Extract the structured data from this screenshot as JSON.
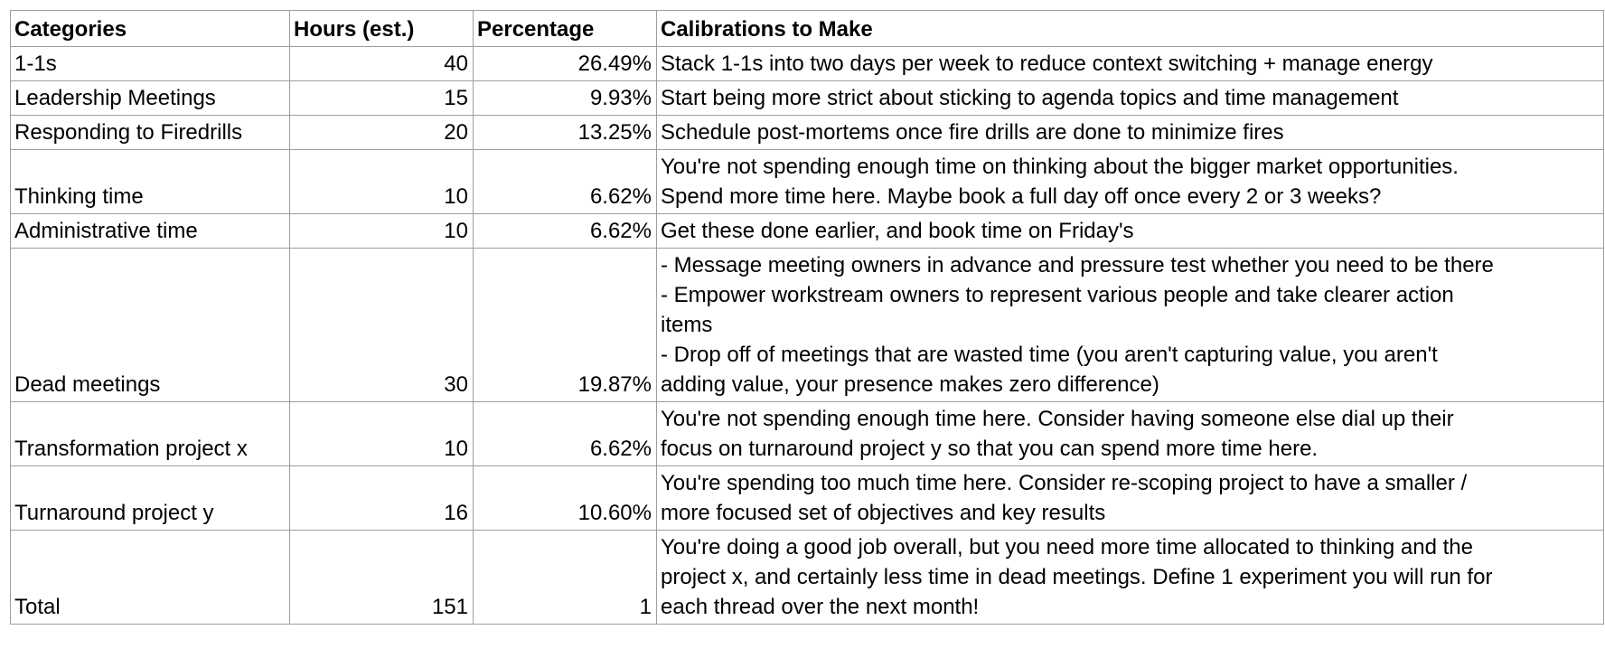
{
  "table": {
    "headers": [
      "Categories",
      "Hours (est.)",
      "Percentage",
      "Calibrations to Make"
    ],
    "rows": [
      {
        "category": "1-1s",
        "hours": "40",
        "percentage": "26.49%",
        "calibration": "Stack 1-1s into two days per week to reduce context switching + manage energy"
      },
      {
        "category": "Leadership Meetings",
        "hours": "15",
        "percentage": "9.93%",
        "calibration": "Start being more strict about sticking to agenda topics and time management"
      },
      {
        "category": "Responding to Firedrills",
        "hours": "20",
        "percentage": "13.25%",
        "calibration": "Schedule post-mortems once fire drills are done to minimize fires"
      },
      {
        "category": "Thinking time",
        "hours": "10",
        "percentage": "6.62%",
        "calibration": "You're not spending enough time on thinking about the bigger market opportunities.\nSpend more time here. Maybe book a full day off once every 2 or 3 weeks?"
      },
      {
        "category": "Administrative time",
        "hours": "10",
        "percentage": "6.62%",
        "calibration": "Get these done earlier, and book time on Friday's"
      },
      {
        "category": "Dead meetings",
        "hours": "30",
        "percentage": "19.87%",
        "calibration": "- Message meeting owners in advance and pressure test whether you need to be there\n- Empower workstream owners to represent various people and take clearer action\nitems\n- Drop off of meetings that are wasted time (you aren't capturing value, you aren't\nadding value, your presence makes zero difference)"
      },
      {
        "category": "Transformation project x",
        "hours": "10",
        "percentage": "6.62%",
        "calibration": "You're not spending enough time here. Consider having someone else dial up their\nfocus on turnaround project y so that you can spend more time here."
      },
      {
        "category": "Turnaround project y",
        "hours": "16",
        "percentage": "10.60%",
        "calibration": "You're spending too much time here. Consider re-scoping project to have a smaller /\nmore focused set of objectives and key results"
      },
      {
        "category": "Total",
        "hours": "151",
        "percentage": "1",
        "calibration": "You're doing a good job overall, but you need more time allocated to thinking and the\nproject x, and certainly less time in dead meetings. Define 1 experiment you will run for\neach thread over the next month!"
      }
    ]
  }
}
